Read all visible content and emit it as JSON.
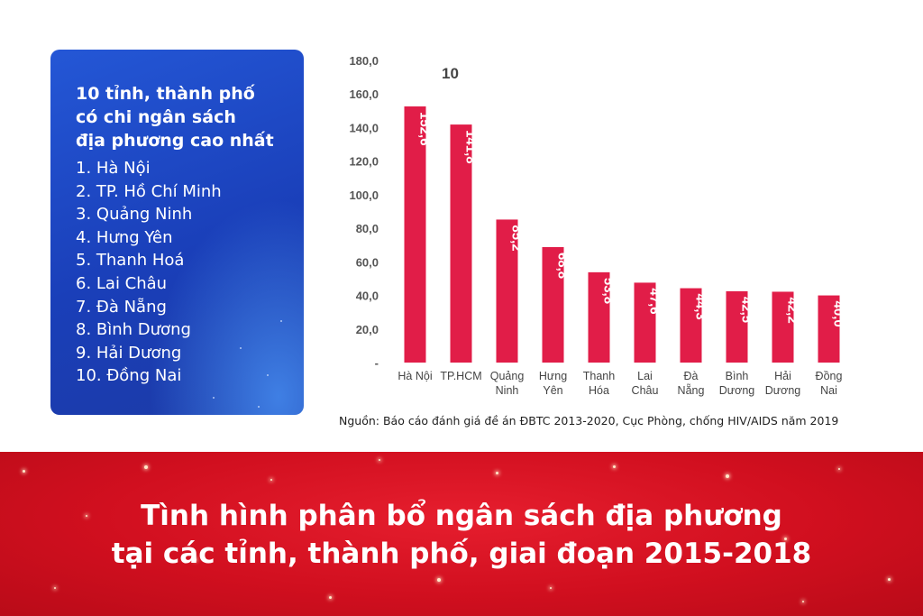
{
  "panel": {
    "title_lines": [
      "10 tỉnh, thành phố",
      "có chi ngân sách",
      "địa phương cao nhất"
    ],
    "items": [
      "1. Hà Nội",
      "2. TP. Hồ Chí Minh",
      "3. Quảng Ninh",
      "4. Hưng Yên",
      "5. Thanh Hoá",
      "6. Lai Châu",
      "7. Đà Nẵng",
      "8. Bình Dương",
      "9. Hải Dương",
      "10. Đồng Nai"
    ],
    "bg_color": "#1f4cc7"
  },
  "chart_data": {
    "type": "bar",
    "title": "10",
    "categories": [
      [
        "Hà Nội"
      ],
      [
        "TP.HCM"
      ],
      [
        "Quảng",
        "Ninh"
      ],
      [
        "Hưng",
        "Yên"
      ],
      [
        "Thanh",
        "Hóa"
      ],
      [
        "Lai",
        "Châu"
      ],
      [
        "Đà",
        "Nẵng"
      ],
      [
        "Bình",
        "Dương"
      ],
      [
        "Hải",
        "Dương"
      ],
      [
        "Đồng",
        "Nai"
      ]
    ],
    "values": [
      152.6,
      141.8,
      85.2,
      68.8,
      53.8,
      47.6,
      44.3,
      42.5,
      42.2,
      40.0
    ],
    "value_labels": [
      "152,6",
      "141,8",
      "85,2",
      "68,8",
      "53,8",
      "47,6",
      "44,3",
      "42,5",
      "42,2",
      "40,0"
    ],
    "y_ticks": [
      "-",
      "20,0",
      "40,0",
      "60,0",
      "80,0",
      "100,0",
      "120,0",
      "140,0",
      "160,0",
      "180,0"
    ],
    "ylim": [
      0,
      180
    ],
    "bar_color": "#e11d48",
    "grid": false
  },
  "source": "Nguồn: Báo cáo đánh giá đề án ĐBTC 2013-2020, Cục Phòng, chống HIV/AIDS năm 2019",
  "banner": {
    "title_lines": [
      "Tình hình phân bổ ngân sách địa phương",
      "tại các tỉnh, thành phố, giai đoạn 2015-2018"
    ],
    "bg_color": "#d10f1f"
  }
}
